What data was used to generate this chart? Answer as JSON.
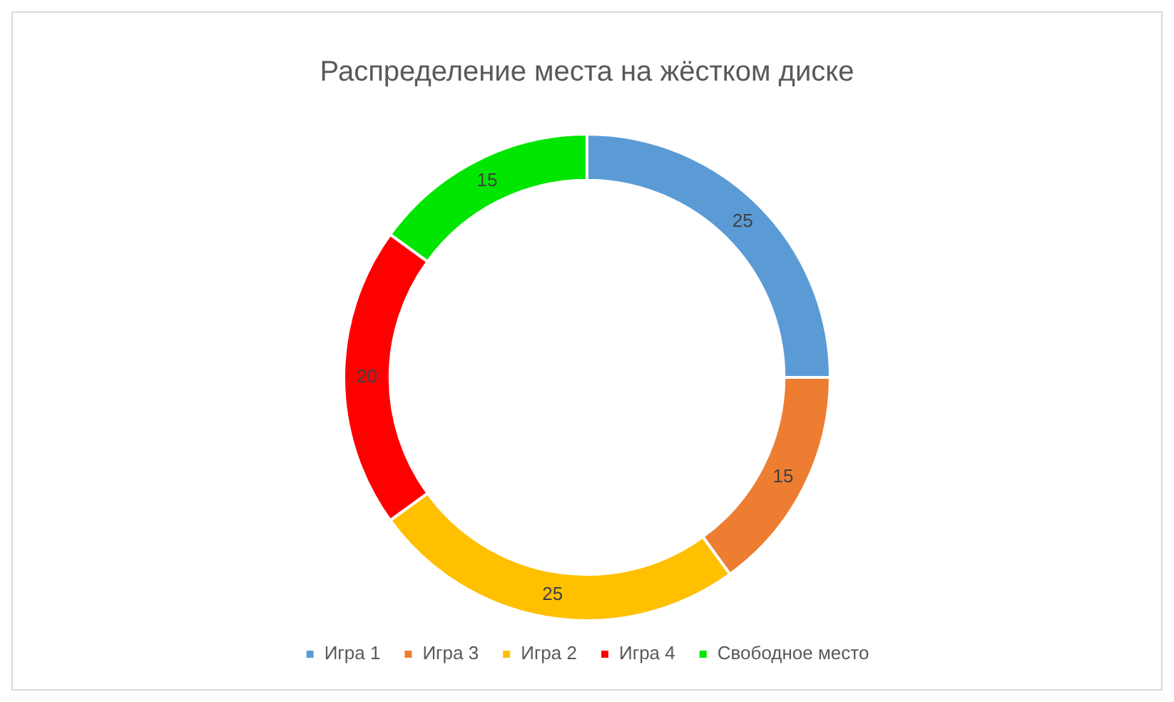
{
  "chart_data": {
    "type": "donut",
    "title": "Распределение места на жёстком диске",
    "categories": [
      "Игра 1",
      "Игра 3",
      "Игра 2",
      "Игра 4",
      "Свободное место"
    ],
    "values": [
      25,
      15,
      25,
      20,
      15
    ],
    "colors": [
      "#5b9bd5",
      "#ed7d31",
      "#ffc000",
      "#ff0000",
      "#00e600"
    ],
    "data_labels": true,
    "legend": "bottom"
  }
}
